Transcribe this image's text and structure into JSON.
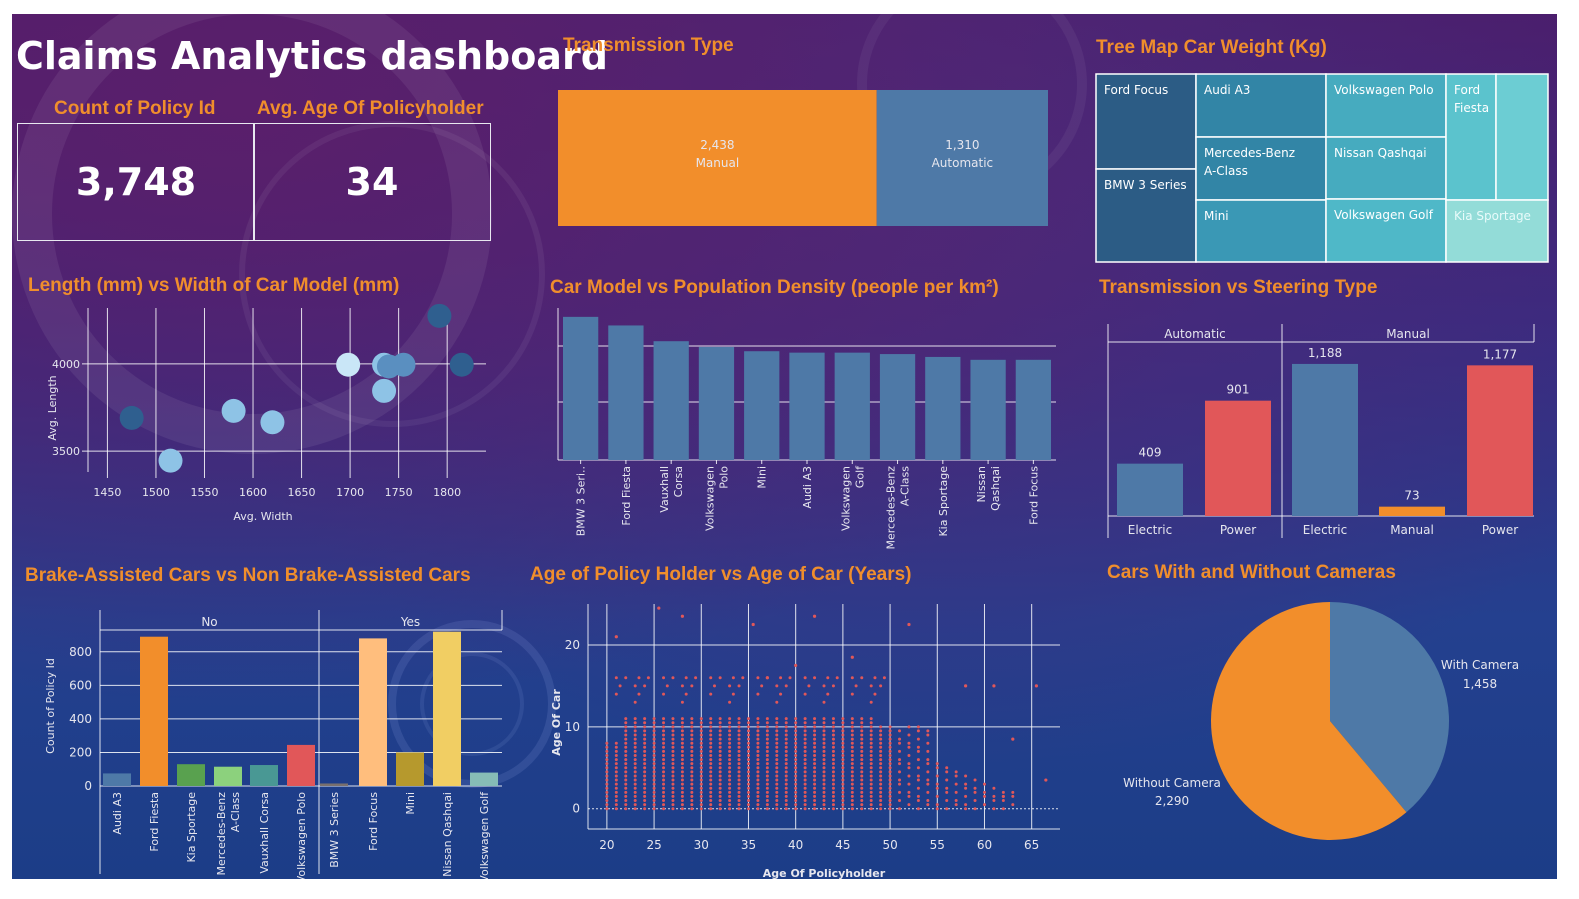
{
  "title": "Claims Analytics dashboard",
  "kpis": {
    "count_label": "Count of Policy Id",
    "count_value": "3,748",
    "age_label": "Avg. Age Of Policyholder",
    "age_value": "34"
  },
  "colors": {
    "orange": "#f28e2b",
    "blue": "#4e79a7",
    "red": "#e15759",
    "title_orange": "#f08e2c"
  },
  "chart_data": [
    {
      "id": "transmission",
      "type": "bar",
      "title": "Transmission Type",
      "categories": [
        "Manual",
        "Automatic"
      ],
      "values": [
        2438,
        1310
      ],
      "labels": [
        "2,438",
        "1,310"
      ]
    },
    {
      "id": "treemap",
      "type": "treemap",
      "title": "Tree Map Car Weight (Kg)",
      "categories": [
        "Ford Focus",
        "BMW 3 Series",
        "Audi A3",
        "Mercedes-Benz A-Class",
        "Mini",
        "Volkswagen Polo",
        "Nissan Qashqai",
        "Volkswagen Golf",
        "Ford Fiesta",
        "Kia Sportage"
      ]
    },
    {
      "id": "length_width",
      "type": "scatter",
      "title": "Length (mm) vs Width of Car Model (mm)",
      "xlabel": "Avg. Width",
      "ylabel": "Avg. Length",
      "xticks": [
        1450,
        1500,
        1550,
        1600,
        1650,
        1700,
        1750,
        1800
      ],
      "yticks": [
        3500,
        4000
      ],
      "xlim": [
        1430,
        1840
      ],
      "ylim": [
        3380,
        4320
      ],
      "points": [
        {
          "x": 1475,
          "y": 3690,
          "shade": "dark"
        },
        {
          "x": 1515,
          "y": 3445,
          "shade": "light"
        },
        {
          "x": 1580,
          "y": 3730,
          "shade": "light"
        },
        {
          "x": 1620,
          "y": 3665,
          "shade": "light"
        },
        {
          "x": 1698,
          "y": 3995,
          "shade": "pale"
        },
        {
          "x": 1735,
          "y": 3995,
          "shade": "light"
        },
        {
          "x": 1740,
          "y": 3985,
          "shade": "mid"
        },
        {
          "x": 1735,
          "y": 3845,
          "shade": "light"
        },
        {
          "x": 1755,
          "y": 3995,
          "shade": "mid"
        },
        {
          "x": 1792,
          "y": 4275,
          "shade": "dark"
        },
        {
          "x": 1815,
          "y": 3995,
          "shade": "dark"
        }
      ]
    },
    {
      "id": "population",
      "type": "bar",
      "title": "Car Model vs Population Density (people per km²)",
      "categories": [
        "BMW 3 Seri..",
        "Ford Fiesta",
        "Vauxhall Corsa",
        "Volkswagen Polo",
        "Mini",
        "Audi A3",
        "Volkswagen Golf",
        "Mercedes-Benz A-Class",
        "Kia Sportage",
        "Nissan Qashqai",
        "Ford Focus"
      ],
      "values": [
        100,
        94,
        83,
        79,
        76,
        75,
        75,
        74,
        72,
        70,
        70
      ]
    },
    {
      "id": "steering",
      "type": "bar",
      "title": "Transmission vs Steering Type",
      "groups": [
        "Automatic",
        "Manual"
      ],
      "categories": [
        "Electric",
        "Power",
        "Electric",
        "Manual",
        "Power"
      ],
      "group_of": [
        0,
        0,
        1,
        1,
        1
      ],
      "values": [
        409,
        901,
        1188,
        73,
        1177
      ],
      "labels": [
        "409",
        "901",
        "1,188",
        "73",
        "1,177"
      ],
      "ylim": [
        0,
        1250
      ]
    },
    {
      "id": "brake",
      "type": "bar",
      "title": "Brake-Assisted Cars vs Non Brake-Assisted Cars",
      "ylabel": "Count of Policy Id",
      "groups": [
        "No",
        "Yes"
      ],
      "yticks": [
        0,
        200,
        400,
        600,
        800
      ],
      "ylim": [
        0,
        930
      ],
      "categories": [
        "Audi A3",
        "Ford Fiesta",
        "Kia Sportage",
        "Mercedes-Benz A-Class",
        "Vauxhall Corsa",
        "Volkswagen Polo",
        "BMW 3 Series",
        "Ford Focus",
        "Mini",
        "Nissan Qashqai",
        "Volkswagen Golf"
      ],
      "group_of": [
        0,
        0,
        0,
        0,
        0,
        0,
        1,
        1,
        1,
        1,
        1
      ],
      "values": [
        75,
        890,
        130,
        115,
        125,
        245,
        15,
        880,
        200,
        920,
        80
      ]
    },
    {
      "id": "age_scatter",
      "type": "scatter",
      "title": "Age of Policy Holder vs Age of Car (Years)",
      "xlabel": "Age Of Policyholder",
      "ylabel": "Age Of Car",
      "xticks": [
        20,
        25,
        30,
        35,
        40,
        45,
        50,
        55,
        60,
        65
      ],
      "yticks": [
        0,
        10,
        20
      ],
      "xlim": [
        18,
        68
      ],
      "ylim": [
        -1.5,
        25
      ],
      "dense_rows_max": 11,
      "outliers": [
        {
          "x": 21,
          "y": 21
        },
        {
          "x": 25.5,
          "y": 24.5
        },
        {
          "x": 28,
          "y": 23.5
        },
        {
          "x": 35.5,
          "y": 22.5
        },
        {
          "x": 42,
          "y": 23.5
        },
        {
          "x": 52,
          "y": 22.5
        },
        {
          "x": 40,
          "y": 17.5
        },
        {
          "x": 46,
          "y": 18.5
        },
        {
          "x": 37,
          "y": 16
        },
        {
          "x": 62,
          "y": 1.5
        },
        {
          "x": 66.5,
          "y": 3.5
        },
        {
          "x": 65.5,
          "y": 15
        },
        {
          "x": 61,
          "y": 15
        },
        {
          "x": 58,
          "y": 15
        },
        {
          "x": 63,
          "y": 8.5
        }
      ]
    },
    {
      "id": "cameras",
      "type": "pie",
      "title": "Cars With and Without Cameras",
      "categories": [
        "With Camera",
        "Without Camera"
      ],
      "values": [
        1458,
        2290
      ],
      "labels": [
        "1,458",
        "2,290"
      ]
    }
  ]
}
